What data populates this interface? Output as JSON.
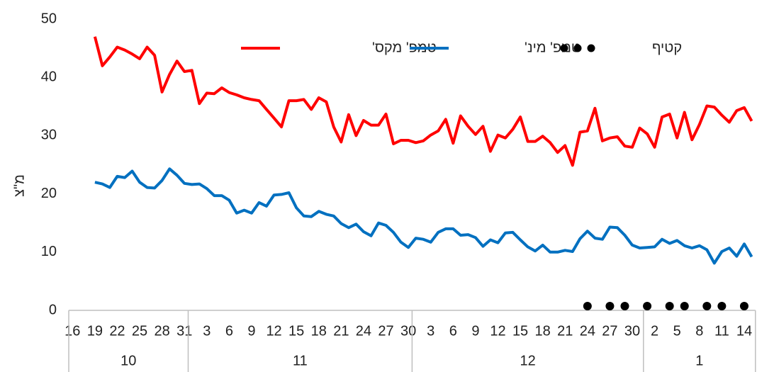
{
  "chart_data": {
    "type": "line",
    "ylabel": "מ\"צ",
    "ylim": [
      0,
      50
    ],
    "yticks": [
      0,
      10,
      20,
      30,
      40,
      50
    ],
    "grid": false,
    "legend": "top",
    "categories": [
      "16",
      null,
      null,
      "19",
      null,
      null,
      "22",
      null,
      null,
      "25",
      null,
      null,
      "28",
      null,
      null,
      "31",
      null,
      null,
      "3",
      null,
      null,
      "6",
      null,
      null,
      "9",
      null,
      null,
      "12",
      null,
      null,
      "15",
      null,
      null,
      "18",
      null,
      null,
      "21",
      null,
      null,
      "24",
      null,
      null,
      "27",
      null,
      null,
      "30",
      null,
      null,
      "3",
      null,
      null,
      "6",
      null,
      null,
      "9",
      null,
      null,
      "12",
      null,
      null,
      "15",
      null,
      null,
      "18",
      null,
      null,
      "21",
      null,
      null,
      "24",
      null,
      null,
      "27",
      null,
      null,
      "30",
      null,
      null,
      "2",
      null,
      null,
      "5",
      null,
      null,
      "8",
      null,
      null,
      "11",
      null,
      null,
      "14",
      null
    ],
    "months": [
      {
        "label": "10",
        "days": 16
      },
      {
        "label": "11",
        "days": 30
      },
      {
        "label": "12",
        "days": 31
      },
      {
        "label": "1",
        "days": 15
      }
    ],
    "series": [
      {
        "name": "טמפ' מקס'",
        "color": "#ff0000",
        "style": "line",
        "values": [
          null,
          null,
          null,
          47,
          42,
          43.5,
          45.2,
          44.7,
          44,
          43.2,
          45.2,
          43.8,
          37.5,
          40.5,
          42.8,
          41,
          41.2,
          35.5,
          37.3,
          37.2,
          38.2,
          37.4,
          37,
          36.5,
          36.2,
          36,
          34.5,
          33,
          31.5,
          36,
          36,
          36.2,
          34.5,
          36.5,
          35.8,
          31.5,
          28.9,
          33.6,
          30,
          32.6,
          31.8,
          31.8,
          33.7,
          28.6,
          29.2,
          29.2,
          28.8,
          29.1,
          30.1,
          30.8,
          32.8,
          28.7,
          33.4,
          31.6,
          30.2,
          31.6,
          27.3,
          30.1,
          29.6,
          31.1,
          33.2,
          29,
          29,
          29.9,
          28.8,
          27.1,
          28.3,
          24.9,
          30.6,
          30.8,
          34.7,
          29.1,
          29.6,
          29.8,
          28.2,
          28,
          31.3,
          30.3,
          28,
          33.2,
          33.7,
          29.6,
          34,
          29.3,
          31.9,
          35.1,
          34.9,
          33.5,
          32.3,
          34.3,
          34.8,
          32.5
        ]
      },
      {
        "name": "טמפ' מינ'",
        "color": "#0070c0",
        "style": "line",
        "values": [
          null,
          null,
          null,
          22,
          21.7,
          21.1,
          23,
          22.8,
          23.9,
          22,
          21.1,
          21,
          22.3,
          24.3,
          23.2,
          21.8,
          21.6,
          21.7,
          20.9,
          19.7,
          19.7,
          18.9,
          16.7,
          17.2,
          16.7,
          18.5,
          17.9,
          19.8,
          19.9,
          20.2,
          17.6,
          16.2,
          16.1,
          17,
          16.5,
          16.2,
          14.9,
          14.2,
          14.8,
          13.5,
          12.8,
          15,
          14.6,
          13.4,
          11.7,
          10.8,
          12.4,
          12.2,
          11.7,
          13.4,
          14,
          14,
          12.9,
          13,
          12.5,
          11,
          12.1,
          11.6,
          13.3,
          13.4,
          12.1,
          10.9,
          10.2,
          11.2,
          10,
          10,
          10.3,
          10.1,
          12.3,
          13.6,
          12.4,
          12.2,
          14.3,
          14.2,
          12.9,
          11.2,
          10.7,
          10.8,
          10.9,
          12.2,
          11.5,
          12,
          11.1,
          10.7,
          11.1,
          10.4,
          8.1,
          10.1,
          10.7,
          9.3,
          11.4,
          9.2
        ]
      },
      {
        "name": "קטיף",
        "color": "#000000",
        "style": "dots",
        "values": [
          null,
          null,
          null,
          null,
          null,
          null,
          null,
          null,
          null,
          null,
          null,
          null,
          null,
          null,
          null,
          null,
          null,
          null,
          null,
          null,
          null,
          null,
          null,
          null,
          null,
          null,
          null,
          null,
          null,
          null,
          null,
          null,
          null,
          null,
          null,
          null,
          null,
          null,
          null,
          null,
          null,
          null,
          null,
          null,
          null,
          null,
          null,
          null,
          null,
          null,
          null,
          null,
          null,
          null,
          null,
          null,
          null,
          null,
          null,
          null,
          null,
          null,
          null,
          null,
          null,
          null,
          null,
          null,
          null,
          0,
          null,
          null,
          0,
          null,
          0,
          null,
          null,
          0,
          null,
          null,
          0,
          null,
          0,
          null,
          null,
          0,
          null,
          0,
          null,
          null,
          0,
          null
        ]
      }
    ]
  }
}
